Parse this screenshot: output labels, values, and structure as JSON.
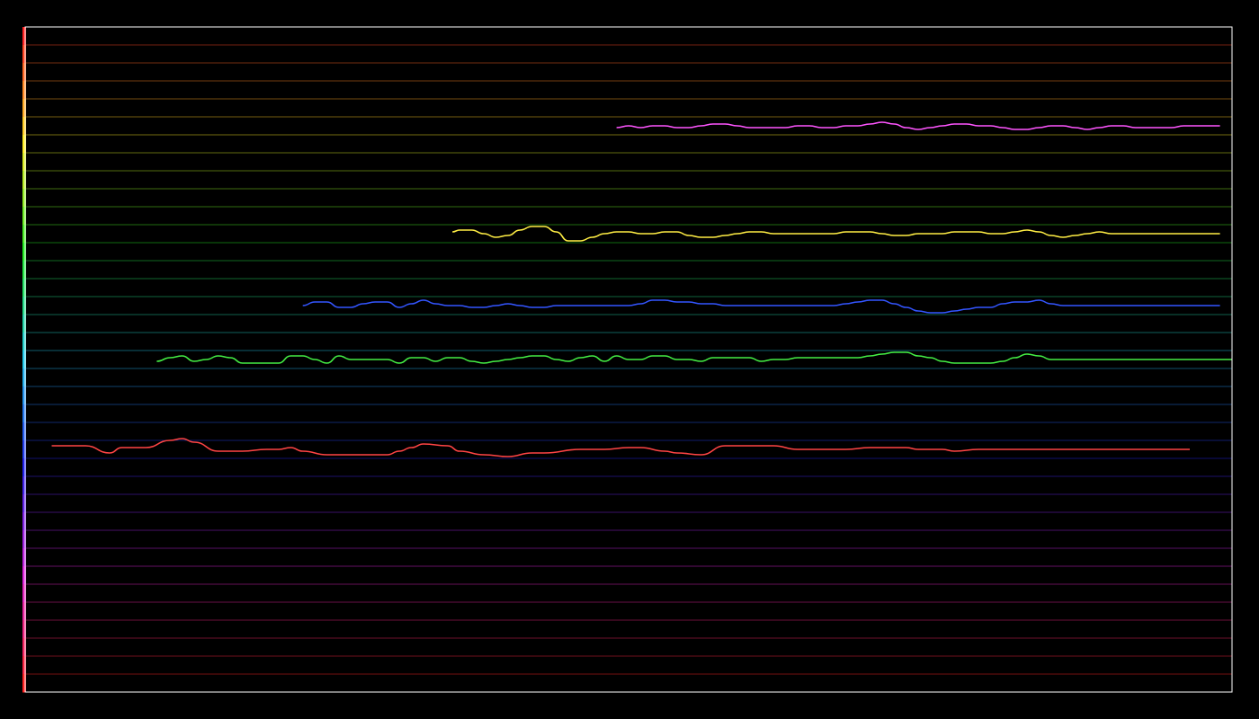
{
  "chart_data": {
    "type": "line",
    "title": "",
    "xlabel": "",
    "ylabel": "",
    "xlim": [
      0,
      100
    ],
    "ylim": [
      -18.5,
      18.5
    ],
    "grid": true,
    "legend": "none",
    "background": "#000000",
    "frame_color": "#ffffff",
    "band_palette": [
      "#ff2222",
      "#ffee22",
      "#22ee22",
      "#22ccee",
      "#2222ee",
      "#dd22dd"
    ],
    "gridline_count": 36,
    "series": [
      {
        "color": "#ff4444",
        "x": [
          2.2,
          4,
          5,
          7,
          8,
          10,
          12,
          13,
          14,
          16,
          17,
          18,
          20,
          21,
          22,
          23,
          25,
          28,
          30,
          31,
          32,
          33,
          35,
          36,
          38,
          40,
          42,
          43,
          46,
          48,
          50,
          51,
          53,
          54,
          56,
          58,
          60,
          62,
          64,
          66,
          67,
          68,
          70,
          71,
          73,
          74,
          76,
          77,
          79,
          80,
          82,
          84,
          86,
          88,
          90,
          92,
          94,
          96,
          96.5
        ],
        "y": [
          -4.8,
          -4.8,
          -4.8,
          -5.2,
          -4.9,
          -4.9,
          -4.5,
          -4.4,
          -4.6,
          -5.1,
          -5.1,
          -5.1,
          -5.0,
          -5.0,
          -4.9,
          -5.1,
          -5.3,
          -5.3,
          -5.3,
          -5.1,
          -4.9,
          -4.7,
          -4.8,
          -5.1,
          -5.3,
          -5.4,
          -5.2,
          -5.2,
          -5.0,
          -5.0,
          -4.9,
          -4.9,
          -5.1,
          -5.2,
          -5.3,
          -4.8,
          -4.8,
          -4.8,
          -5.0,
          -5.0,
          -5.0,
          -5.0,
          -4.9,
          -4.9,
          -4.9,
          -5.0,
          -5.0,
          -5.1,
          -5.0,
          -5.0,
          -5.0,
          -5.0,
          -5.0,
          -5.0,
          -5.0,
          -5.0,
          -5.0,
          -5.0,
          -5.0
        ]
      },
      {
        "color": "#44ee44",
        "x": [
          10.9,
          12,
          13,
          14,
          15,
          16,
          17,
          18,
          19,
          20,
          21,
          22,
          23,
          24,
          25,
          26,
          27,
          28,
          29,
          30,
          31,
          32,
          33,
          34,
          35,
          36,
          37,
          38,
          39,
          40,
          41,
          42,
          43,
          44,
          45,
          46,
          47,
          48,
          49,
          50,
          51,
          52,
          53,
          54,
          55,
          56,
          57,
          58,
          59,
          60,
          61,
          62,
          63,
          64,
          65,
          66,
          67,
          68,
          69,
          70,
          71,
          72,
          73,
          74,
          75,
          76,
          77,
          78,
          79,
          80,
          81,
          82,
          83,
          84,
          85,
          86,
          87,
          88,
          89,
          90,
          91,
          92,
          93,
          94,
          95,
          96,
          97,
          98,
          99,
          100
        ],
        "y": [
          -0.1,
          0.1,
          0.2,
          -0.1,
          0.0,
          0.2,
          0.1,
          -0.2,
          -0.2,
          -0.2,
          -0.2,
          0.2,
          0.2,
          0.0,
          -0.2,
          0.2,
          0.0,
          0.0,
          0.0,
          0.0,
          -0.2,
          0.1,
          0.1,
          -0.1,
          0.1,
          0.1,
          -0.1,
          -0.2,
          -0.1,
          0.0,
          0.1,
          0.2,
          0.2,
          0.0,
          -0.1,
          0.1,
          0.2,
          -0.1,
          0.2,
          0.0,
          0.0,
          0.2,
          0.2,
          0.0,
          0.0,
          -0.1,
          0.1,
          0.1,
          0.1,
          0.1,
          -0.1,
          0.0,
          0.0,
          0.1,
          0.1,
          0.1,
          0.1,
          0.1,
          0.1,
          0.2,
          0.3,
          0.4,
          0.4,
          0.2,
          0.1,
          -0.1,
          -0.2,
          -0.2,
          -0.2,
          -0.2,
          -0.1,
          0.1,
          0.3,
          0.2,
          0.0,
          0.0,
          0.0,
          0.0,
          0.0,
          0.0,
          0.0,
          0.0,
          0.0,
          0.0,
          0.0,
          0.0,
          0.0,
          0.0,
          0.0,
          0.0
        ]
      },
      {
        "color": "#3355ff",
        "x": [
          23,
          24,
          25,
          26,
          27,
          28,
          29,
          30,
          31,
          32,
          33,
          34,
          35,
          36,
          37,
          38,
          39,
          40,
          41,
          42,
          43,
          44,
          45,
          46,
          47,
          48,
          49,
          50,
          51,
          52,
          53,
          54,
          55,
          56,
          57,
          58,
          59,
          60,
          61,
          62,
          63,
          64,
          65,
          66,
          67,
          68,
          69,
          70,
          71,
          72,
          73,
          74,
          75,
          76,
          77,
          78,
          79,
          80,
          81,
          82,
          83,
          84,
          85,
          86,
          87,
          88,
          89,
          90,
          91,
          92,
          93,
          94,
          95,
          96,
          97,
          98,
          99
        ],
        "y": [
          3.0,
          3.2,
          3.2,
          2.9,
          2.9,
          3.1,
          3.2,
          3.2,
          2.9,
          3.1,
          3.3,
          3.1,
          3.0,
          3.0,
          2.9,
          2.9,
          3.0,
          3.1,
          3.0,
          2.9,
          2.9,
          3.0,
          3.0,
          3.0,
          3.0,
          3.0,
          3.0,
          3.0,
          3.1,
          3.3,
          3.3,
          3.2,
          3.2,
          3.1,
          3.1,
          3.0,
          3.0,
          3.0,
          3.0,
          3.0,
          3.0,
          3.0,
          3.0,
          3.0,
          3.0,
          3.1,
          3.2,
          3.3,
          3.3,
          3.1,
          2.9,
          2.7,
          2.6,
          2.6,
          2.7,
          2.8,
          2.9,
          2.9,
          3.1,
          3.2,
          3.2,
          3.3,
          3.1,
          3.0,
          3.0,
          3.0,
          3.0,
          3.0,
          3.0,
          3.0,
          3.0,
          3.0,
          3.0,
          3.0,
          3.0,
          3.0,
          3.0
        ]
      },
      {
        "color": "#ffee44",
        "x": [
          35.4,
          36,
          37,
          38,
          39,
          40,
          41,
          42,
          43,
          44,
          45,
          46,
          47,
          48,
          49,
          50,
          51,
          52,
          53,
          54,
          55,
          56,
          57,
          58,
          59,
          60,
          61,
          62,
          63,
          64,
          65,
          66,
          67,
          68,
          69,
          70,
          71,
          72,
          73,
          74,
          75,
          76,
          77,
          78,
          79,
          80,
          81,
          82,
          83,
          84,
          85,
          86,
          87,
          88,
          89,
          90,
          91,
          92,
          93,
          94,
          95,
          96,
          97,
          98,
          99
        ],
        "y": [
          7.1,
          7.2,
          7.2,
          7.0,
          6.8,
          6.9,
          7.2,
          7.4,
          7.4,
          7.1,
          6.6,
          6.6,
          6.8,
          7.0,
          7.1,
          7.1,
          7.0,
          7.0,
          7.1,
          7.1,
          6.9,
          6.8,
          6.8,
          6.9,
          7.0,
          7.1,
          7.1,
          7.0,
          7.0,
          7.0,
          7.0,
          7.0,
          7.0,
          7.1,
          7.1,
          7.1,
          7.0,
          6.9,
          6.9,
          7.0,
          7.0,
          7.0,
          7.1,
          7.1,
          7.1,
          7.0,
          7.0,
          7.1,
          7.2,
          7.1,
          6.9,
          6.8,
          6.9,
          7.0,
          7.1,
          7.0,
          7.0,
          7.0,
          7.0,
          7.0,
          7.0,
          7.0,
          7.0,
          7.0,
          7.0
        ]
      },
      {
        "color": "#ff55ff",
        "x": [
          49,
          50,
          51,
          52,
          53,
          54,
          55,
          56,
          57,
          58,
          59,
          60,
          61,
          62,
          63,
          64,
          65,
          66,
          67,
          68,
          69,
          70,
          71,
          72,
          73,
          74,
          75,
          76,
          77,
          78,
          79,
          80,
          81,
          82,
          83,
          84,
          85,
          86,
          87,
          88,
          89,
          90,
          91,
          92,
          93,
          94,
          95,
          96,
          97,
          98,
          99
        ],
        "y": [
          12.9,
          13.0,
          12.9,
          13.0,
          13.0,
          12.9,
          12.9,
          13.0,
          13.1,
          13.1,
          13.0,
          12.9,
          12.9,
          12.9,
          12.9,
          13.0,
          13.0,
          12.9,
          12.9,
          13.0,
          13.0,
          13.1,
          13.2,
          13.1,
          12.9,
          12.8,
          12.9,
          13.0,
          13.1,
          13.1,
          13.0,
          13.0,
          12.9,
          12.8,
          12.8,
          12.9,
          13.0,
          13.0,
          12.9,
          12.8,
          12.9,
          13.0,
          13.0,
          12.9,
          12.9,
          12.9,
          12.9,
          13.0,
          13.0,
          13.0,
          13.0
        ]
      }
    ]
  }
}
